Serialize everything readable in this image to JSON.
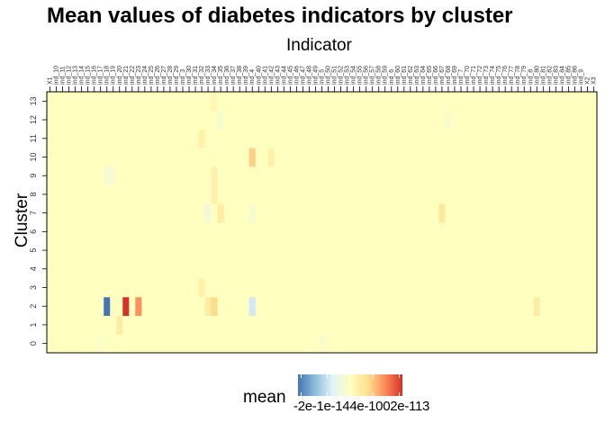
{
  "chart_data": {
    "type": "heatmap",
    "title": "Mean values of diabetes indicators by cluster",
    "xlabel": "Indicator",
    "ylabel": "Cluster",
    "x_categories": [
      "X1",
      "ind_10",
      "ind_11",
      "ind_12",
      "ind_13",
      "ind_14",
      "ind_15",
      "ind_16",
      "ind_17",
      "ind_18",
      "ind_19",
      "ind_20",
      "ind_21",
      "ind_22",
      "ind_23",
      "ind_24",
      "ind_25",
      "ind_26",
      "ind_27",
      "ind_28",
      "ind_29",
      "ind_3",
      "ind_30",
      "ind_31",
      "ind_32",
      "ind_33",
      "ind_34",
      "ind_35",
      "ind_36",
      "ind_37",
      "ind_38",
      "ind_39",
      "ind_4",
      "ind_40",
      "ind_41",
      "ind_42",
      "ind_43",
      "ind_44",
      "ind_45",
      "ind_46",
      "ind_47",
      "ind_48",
      "ind_49",
      "ind_5",
      "ind_50",
      "ind_51",
      "ind_52",
      "ind_53",
      "ind_54",
      "ind_55",
      "ind_56",
      "ind_57",
      "ind_58",
      "ind_59",
      "ind_6",
      "ind_60",
      "ind_61",
      "ind_62",
      "ind_63",
      "ind_64",
      "ind_65",
      "ind_66",
      "ind_67",
      "ind_68",
      "ind_69",
      "ind_7",
      "ind_70",
      "ind_71",
      "ind_72",
      "ind_73",
      "ind_74",
      "ind_75",
      "ind_76",
      "ind_77",
      "ind_78",
      "ind_79",
      "ind_8",
      "ind_80",
      "ind_81",
      "ind_82",
      "ind_83",
      "ind_84",
      "ind_85",
      "ind_86",
      "ind_9",
      "X2",
      "X3"
    ],
    "y_categories": [
      "0",
      "1",
      "2",
      "3",
      "4",
      "5",
      "6",
      "7",
      "8",
      "9",
      "10",
      "11",
      "12",
      "13"
    ],
    "cells": [
      {
        "x": "ind_18",
        "y": "2",
        "value": -2e-14
      },
      {
        "x": "ind_21",
        "y": "2",
        "value": 2e-14
      },
      {
        "x": "ind_23",
        "y": "2",
        "value": 1.3e-14
      },
      {
        "x": "ind_34",
        "y": "2",
        "value": 7e-15
      },
      {
        "x": "ind_4",
        "y": "2",
        "value": -8e-15
      },
      {
        "x": "ind_33",
        "y": "2",
        "value": 4e-15
      },
      {
        "x": "ind_80",
        "y": "2",
        "value": 4e-15
      },
      {
        "x": "ind_4",
        "y": "10",
        "value": 8e-15
      },
      {
        "x": "ind_34",
        "y": "9",
        "value": 3e-15
      },
      {
        "x": "ind_33",
        "y": "7",
        "value": -3e-15
      },
      {
        "x": "ind_35",
        "y": "7",
        "value": 4e-15
      },
      {
        "x": "ind_67",
        "y": "7",
        "value": 5e-15
      },
      {
        "x": "ind_32",
        "y": "11",
        "value": 3e-15
      },
      {
        "x": "ind_34",
        "y": "8",
        "value": 3e-15
      },
      {
        "x": "ind_18",
        "y": "9",
        "value": -2e-15
      },
      {
        "x": "ind_19",
        "y": "9",
        "value": -2e-15
      },
      {
        "x": "ind_20",
        "y": "1",
        "value": 4e-15
      },
      {
        "x": "ind_32",
        "y": "3",
        "value": 3e-15
      },
      {
        "x": "ind_4",
        "y": "7",
        "value": -2e-15
      },
      {
        "x": "ind_42",
        "y": "10",
        "value": 3e-15
      },
      {
        "x": "ind_68",
        "y": "12",
        "value": -1.5e-15
      },
      {
        "x": "ind_5",
        "y": "0",
        "value": -1.5e-15
      },
      {
        "x": "ind_35",
        "y": "12",
        "value": -1.5e-15
      },
      {
        "x": "ind_34",
        "y": "13",
        "value": 2e-15
      },
      {
        "x": "ind_17",
        "y": "0",
        "value": -1e-15
      }
    ],
    "legend": {
      "title": "mean",
      "tick_text": "-2e-1e-144e-1002e-113",
      "colors": [
        "#4575b4",
        "#91bfdb",
        "#e0f3f8",
        "#ffffbf",
        "#fee090",
        "#fc8d59",
        "#d73027"
      ],
      "range": [
        -2e-14,
        2e-14
      ]
    },
    "base_color": "#ffffbf"
  }
}
